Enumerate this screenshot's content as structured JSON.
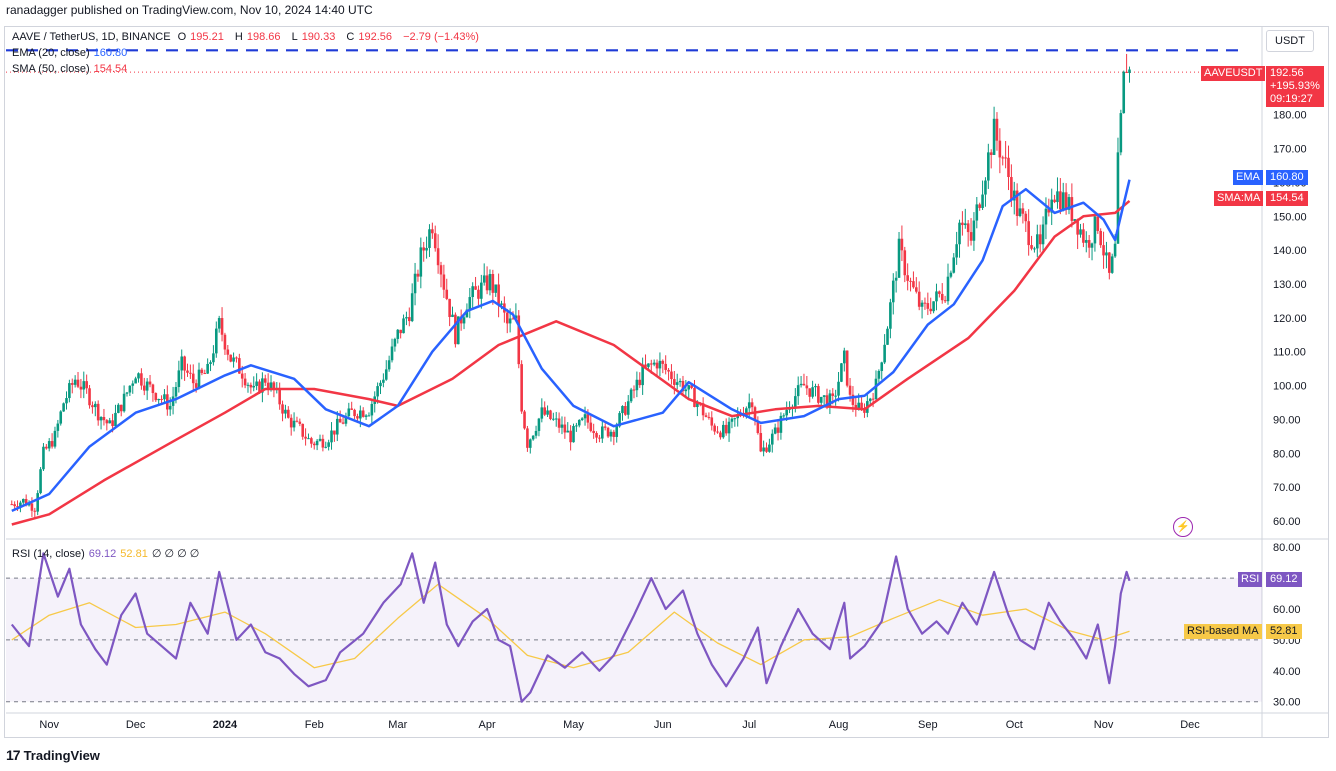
{
  "publisher": "ranadagger published on TradingView.com, Nov 10, 2024 14:40 UTC",
  "branding": {
    "logo_text": "TradingView",
    "logo_mark": "17"
  },
  "currency_button": "USDT",
  "legend": {
    "symbol": "AAVE / TetherUS, 1D, BINANCE",
    "o_label": "O",
    "o": "195.21",
    "h_label": "H",
    "h": "198.66",
    "l_label": "L",
    "l": "190.33",
    "c_label": "C",
    "c": "192.56",
    "change": "−2.79 (−1.43%)",
    "ema_label": "EMA (20, close)",
    "ema_value": "160.80",
    "sma_label": "SMA (50, close)",
    "sma_value": "154.54",
    "rsi_label": "RSI (14, close)",
    "rsi_value": "69.12",
    "rsi_ma_value": "52.81",
    "rsi_extra": "∅ ∅ ∅ ∅"
  },
  "price_tags": {
    "symbol_tag": "AAVEUSDT",
    "last_price": "192.56",
    "pct_change": "+195.93%",
    "countdown": "09:19:27",
    "ema_tag": "EMA",
    "ema_value": "160.80",
    "sma_tag": "SMA:MA",
    "sma_value": "154.54",
    "rsi_tag": "RSI",
    "rsi_value": "69.12",
    "rsi_ma_tag": "RSI-based MA",
    "rsi_ma_value": "52.81"
  },
  "colors": {
    "up": "#089981",
    "down": "#f23645",
    "ema": "#2962ff",
    "sma": "#f23645",
    "rsi": "#7e57c2",
    "rsi_ma": "#f7c948",
    "resistance": "#1e3ad6"
  },
  "chart_data": [
    {
      "type": "candlestick",
      "title": "AAVE / TetherUS, 1D, BINANCE",
      "ylim": [
        55,
        205
      ],
      "y_ticks": [
        "60.00",
        "70.00",
        "80.00",
        "90.00",
        "100.00",
        "110.00",
        "120.00",
        "130.00",
        "140.00",
        "150.00",
        "160.00",
        "170.00",
        "180.00"
      ],
      "x_ticks": [
        "Nov",
        "Dec",
        "2024",
        "Feb",
        "Mar",
        "Apr",
        "May",
        "Jun",
        "Jul",
        "Aug",
        "Sep",
        "Oct",
        "Nov",
        "Dec"
      ],
      "resistance_level": 199,
      "close_path": [
        [
          "2023-10-19",
          65
        ],
        [
          "2023-10-23",
          66
        ],
        [
          "2023-10-27",
          64
        ],
        [
          "2023-10-30",
          80
        ],
        [
          "2023-11-03",
          85
        ],
        [
          "2023-11-06",
          95
        ],
        [
          "2023-11-10",
          102
        ],
        [
          "2023-11-14",
          98
        ],
        [
          "2023-11-18",
          92
        ],
        [
          "2023-11-22",
          88
        ],
        [
          "2023-11-27",
          96
        ],
        [
          "2023-12-01",
          104
        ],
        [
          "2023-12-05",
          100
        ],
        [
          "2023-12-09",
          97
        ],
        [
          "2023-12-13",
          94
        ],
        [
          "2023-12-17",
          106
        ],
        [
          "2023-12-21",
          101
        ],
        [
          "2023-12-26",
          104
        ],
        [
          "2023-12-30",
          118
        ],
        [
          "2024-01-03",
          108
        ],
        [
          "2024-01-07",
          104
        ],
        [
          "2024-01-11",
          98
        ],
        [
          "2024-01-15",
          102
        ],
        [
          "2024-01-19",
          97
        ],
        [
          "2024-01-23",
          90
        ],
        [
          "2024-01-27",
          87
        ],
        [
          "2024-01-31",
          83
        ],
        [
          "2024-02-05",
          84
        ],
        [
          "2024-02-09",
          88
        ],
        [
          "2024-02-14",
          92
        ],
        [
          "2024-02-20",
          93
        ],
        [
          "2024-02-26",
          105
        ],
        [
          "2024-03-01",
          115
        ],
        [
          "2024-03-05",
          122
        ],
        [
          "2024-03-09",
          138
        ],
        [
          "2024-03-13",
          148
        ],
        [
          "2024-03-17",
          130
        ],
        [
          "2024-03-21",
          115
        ],
        [
          "2024-03-25",
          125
        ],
        [
          "2024-03-29",
          128
        ],
        [
          "2024-04-02",
          131
        ],
        [
          "2024-04-05",
          125
        ],
        [
          "2024-04-08",
          118
        ],
        [
          "2024-04-11",
          119
        ],
        [
          "2024-04-13",
          94
        ],
        [
          "2024-04-15",
          83
        ],
        [
          "2024-04-20",
          92
        ],
        [
          "2024-04-25",
          89
        ],
        [
          "2024-04-30",
          85
        ],
        [
          "2024-05-05",
          90
        ],
        [
          "2024-05-10",
          86
        ],
        [
          "2024-05-15",
          87
        ],
        [
          "2024-05-20",
          95
        ],
        [
          "2024-05-25",
          104
        ],
        [
          "2024-05-30",
          107
        ],
        [
          "2024-06-04",
          103
        ],
        [
          "2024-06-08",
          100
        ],
        [
          "2024-06-13",
          95
        ],
        [
          "2024-06-18",
          88
        ],
        [
          "2024-06-23",
          86
        ],
        [
          "2024-06-28",
          92
        ],
        [
          "2024-07-02",
          96
        ],
        [
          "2024-07-05",
          80
        ],
        [
          "2024-07-10",
          86
        ],
        [
          "2024-07-15",
          95
        ],
        [
          "2024-07-20",
          100
        ],
        [
          "2024-07-25",
          97
        ],
        [
          "2024-07-30",
          95
        ],
        [
          "2024-08-03",
          108
        ],
        [
          "2024-08-05",
          96
        ],
        [
          "2024-08-09",
          92
        ],
        [
          "2024-08-14",
          100
        ],
        [
          "2024-08-18",
          118
        ],
        [
          "2024-08-22",
          140
        ],
        [
          "2024-08-26",
          130
        ],
        [
          "2024-08-30",
          122
        ],
        [
          "2024-09-03",
          125
        ],
        [
          "2024-09-07",
          128
        ],
        [
          "2024-09-12",
          148
        ],
        [
          "2024-09-16",
          143
        ],
        [
          "2024-09-20",
          160
        ],
        [
          "2024-09-24",
          175
        ],
        [
          "2024-09-28",
          165
        ],
        [
          "2024-10-02",
          152
        ],
        [
          "2024-10-06",
          145
        ],
        [
          "2024-10-10",
          140
        ],
        [
          "2024-10-14",
          158
        ],
        [
          "2024-10-18",
          155
        ],
        [
          "2024-10-22",
          150
        ],
        [
          "2024-10-26",
          142
        ],
        [
          "2024-10-30",
          148
        ],
        [
          "2024-11-03",
          132
        ],
        [
          "2024-11-05",
          140
        ],
        [
          "2024-11-06",
          165
        ],
        [
          "2024-11-08",
          190
        ],
        [
          "2024-11-09",
          195
        ],
        [
          "2024-11-10",
          192.56
        ]
      ],
      "ema20_path": [
        [
          "2023-10-19",
          63
        ],
        [
          "2023-11-01",
          68
        ],
        [
          "2023-11-15",
          82
        ],
        [
          "2023-12-01",
          92
        ],
        [
          "2023-12-15",
          96
        ],
        [
          "2024-01-01",
          103
        ],
        [
          "2024-01-10",
          106
        ],
        [
          "2024-01-25",
          102
        ],
        [
          "2024-02-05",
          93
        ],
        [
          "2024-02-20",
          88
        ],
        [
          "2024-03-01",
          94
        ],
        [
          "2024-03-13",
          110
        ],
        [
          "2024-03-25",
          122
        ],
        [
          "2024-04-03",
          125
        ],
        [
          "2024-04-10",
          121
        ],
        [
          "2024-04-20",
          105
        ],
        [
          "2024-05-01",
          94
        ],
        [
          "2024-05-15",
          88
        ],
        [
          "2024-06-01",
          92
        ],
        [
          "2024-06-10",
          101
        ],
        [
          "2024-06-25",
          93
        ],
        [
          "2024-07-05",
          89
        ],
        [
          "2024-07-20",
          91
        ],
        [
          "2024-08-01",
          96
        ],
        [
          "2024-08-10",
          97
        ],
        [
          "2024-08-20",
          104
        ],
        [
          "2024-09-01",
          118
        ],
        [
          "2024-09-10",
          124
        ],
        [
          "2024-09-20",
          137
        ],
        [
          "2024-09-27",
          153
        ],
        [
          "2024-10-05",
          158
        ],
        [
          "2024-10-15",
          151
        ],
        [
          "2024-10-25",
          154
        ],
        [
          "2024-11-01",
          149
        ],
        [
          "2024-11-05",
          143
        ],
        [
          "2024-11-10",
          160.8
        ]
      ],
      "sma50_path": [
        [
          "2023-10-19",
          59
        ],
        [
          "2023-11-01",
          62
        ],
        [
          "2023-11-20",
          72
        ],
        [
          "2023-12-15",
          84
        ],
        [
          "2024-01-01",
          92
        ],
        [
          "2024-01-15",
          99
        ],
        [
          "2024-02-01",
          99
        ],
        [
          "2024-02-20",
          96
        ],
        [
          "2024-03-01",
          94
        ],
        [
          "2024-03-20",
          102
        ],
        [
          "2024-04-05",
          112
        ],
        [
          "2024-04-25",
          119
        ],
        [
          "2024-05-15",
          112
        ],
        [
          "2024-06-10",
          96
        ],
        [
          "2024-06-25",
          91
        ],
        [
          "2024-07-10",
          93
        ],
        [
          "2024-07-25",
          94
        ],
        [
          "2024-08-10",
          93
        ],
        [
          "2024-08-25",
          102
        ],
        [
          "2024-09-15",
          114
        ],
        [
          "2024-10-01",
          128
        ],
        [
          "2024-10-15",
          144
        ],
        [
          "2024-10-25",
          150
        ],
        [
          "2024-11-05",
          151
        ],
        [
          "2024-11-10",
          154.54
        ]
      ]
    },
    {
      "type": "line",
      "title": "RSI (14, close)",
      "ylim": [
        27,
        82
      ],
      "y_ticks": [
        "30.00",
        "40.00",
        "50.00",
        "60.00",
        "70.00",
        "80.00"
      ],
      "bands": [
        30,
        70
      ],
      "rsi_path": [
        [
          "2023-10-19",
          55
        ],
        [
          "2023-10-25",
          48
        ],
        [
          "2023-10-30",
          78
        ],
        [
          "2023-11-04",
          64
        ],
        [
          "2023-11-08",
          73
        ],
        [
          "2023-11-12",
          55
        ],
        [
          "2023-11-17",
          47
        ],
        [
          "2023-11-21",
          42
        ],
        [
          "2023-11-26",
          58
        ],
        [
          "2023-12-01",
          65
        ],
        [
          "2023-12-05",
          52
        ],
        [
          "2023-12-10",
          48
        ],
        [
          "2023-12-15",
          44
        ],
        [
          "2023-12-20",
          62
        ],
        [
          "2023-12-26",
          52
        ],
        [
          "2023-12-30",
          72
        ],
        [
          "2024-01-05",
          50
        ],
        [
          "2024-01-10",
          55
        ],
        [
          "2024-01-15",
          46
        ],
        [
          "2024-01-20",
          44
        ],
        [
          "2024-01-25",
          39
        ],
        [
          "2024-01-30",
          35
        ],
        [
          "2024-02-05",
          37
        ],
        [
          "2024-02-10",
          46
        ],
        [
          "2024-02-18",
          52
        ],
        [
          "2024-02-25",
          62
        ],
        [
          "2024-03-02",
          68
        ],
        [
          "2024-03-06",
          78
        ],
        [
          "2024-03-10",
          62
        ],
        [
          "2024-03-14",
          75
        ],
        [
          "2024-03-18",
          55
        ],
        [
          "2024-03-22",
          48
        ],
        [
          "2024-03-27",
          56
        ],
        [
          "2024-04-01",
          60
        ],
        [
          "2024-04-05",
          50
        ],
        [
          "2024-04-09",
          48
        ],
        [
          "2024-04-13",
          30
        ],
        [
          "2024-04-16",
          33
        ],
        [
          "2024-04-22",
          45
        ],
        [
          "2024-04-28",
          41
        ],
        [
          "2024-05-04",
          46
        ],
        [
          "2024-05-10",
          40
        ],
        [
          "2024-05-15",
          45
        ],
        [
          "2024-05-22",
          58
        ],
        [
          "2024-05-28",
          70
        ],
        [
          "2024-06-02",
          60
        ],
        [
          "2024-06-08",
          66
        ],
        [
          "2024-06-13",
          52
        ],
        [
          "2024-06-18",
          42
        ],
        [
          "2024-06-23",
          35
        ],
        [
          "2024-06-29",
          44
        ],
        [
          "2024-07-04",
          54
        ],
        [
          "2024-07-07",
          36
        ],
        [
          "2024-07-12",
          48
        ],
        [
          "2024-07-18",
          60
        ],
        [
          "2024-07-23",
          52
        ],
        [
          "2024-07-29",
          47
        ],
        [
          "2024-08-03",
          62
        ],
        [
          "2024-08-05",
          44
        ],
        [
          "2024-08-10",
          48
        ],
        [
          "2024-08-16",
          56
        ],
        [
          "2024-08-21",
          77
        ],
        [
          "2024-08-25",
          60
        ],
        [
          "2024-08-30",
          52
        ],
        [
          "2024-09-04",
          56
        ],
        [
          "2024-09-08",
          52
        ],
        [
          "2024-09-13",
          62
        ],
        [
          "2024-09-18",
          55
        ],
        [
          "2024-09-24",
          72
        ],
        [
          "2024-09-29",
          58
        ],
        [
          "2024-10-03",
          50
        ],
        [
          "2024-10-08",
          47
        ],
        [
          "2024-10-13",
          62
        ],
        [
          "2024-10-17",
          56
        ],
        [
          "2024-10-22",
          50
        ],
        [
          "2024-10-26",
          44
        ],
        [
          "2024-10-30",
          55
        ],
        [
          "2024-11-03",
          36
        ],
        [
          "2024-11-05",
          48
        ],
        [
          "2024-11-07",
          65
        ],
        [
          "2024-11-09",
          72
        ],
        [
          "2024-11-10",
          69.12
        ]
      ],
      "rsi_ma_path": [
        [
          "2023-10-19",
          50
        ],
        [
          "2023-11-01",
          58
        ],
        [
          "2023-11-15",
          62
        ],
        [
          "2023-12-01",
          54
        ],
        [
          "2023-12-15",
          55
        ],
        [
          "2024-01-01",
          59
        ],
        [
          "2024-01-15",
          52
        ],
        [
          "2024-02-01",
          41
        ],
        [
          "2024-02-15",
          44
        ],
        [
          "2024-03-01",
          57
        ],
        [
          "2024-03-15",
          68
        ],
        [
          "2024-04-01",
          57
        ],
        [
          "2024-04-15",
          45
        ],
        [
          "2024-05-01",
          41
        ],
        [
          "2024-05-20",
          46
        ],
        [
          "2024-06-05",
          59
        ],
        [
          "2024-06-20",
          49
        ],
        [
          "2024-07-05",
          42
        ],
        [
          "2024-07-20",
          50
        ],
        [
          "2024-08-05",
          51
        ],
        [
          "2024-08-20",
          57
        ],
        [
          "2024-09-05",
          63
        ],
        [
          "2024-09-20",
          58
        ],
        [
          "2024-10-05",
          60
        ],
        [
          "2024-10-20",
          53
        ],
        [
          "2024-11-01",
          50
        ],
        [
          "2024-11-10",
          52.81
        ]
      ]
    }
  ]
}
